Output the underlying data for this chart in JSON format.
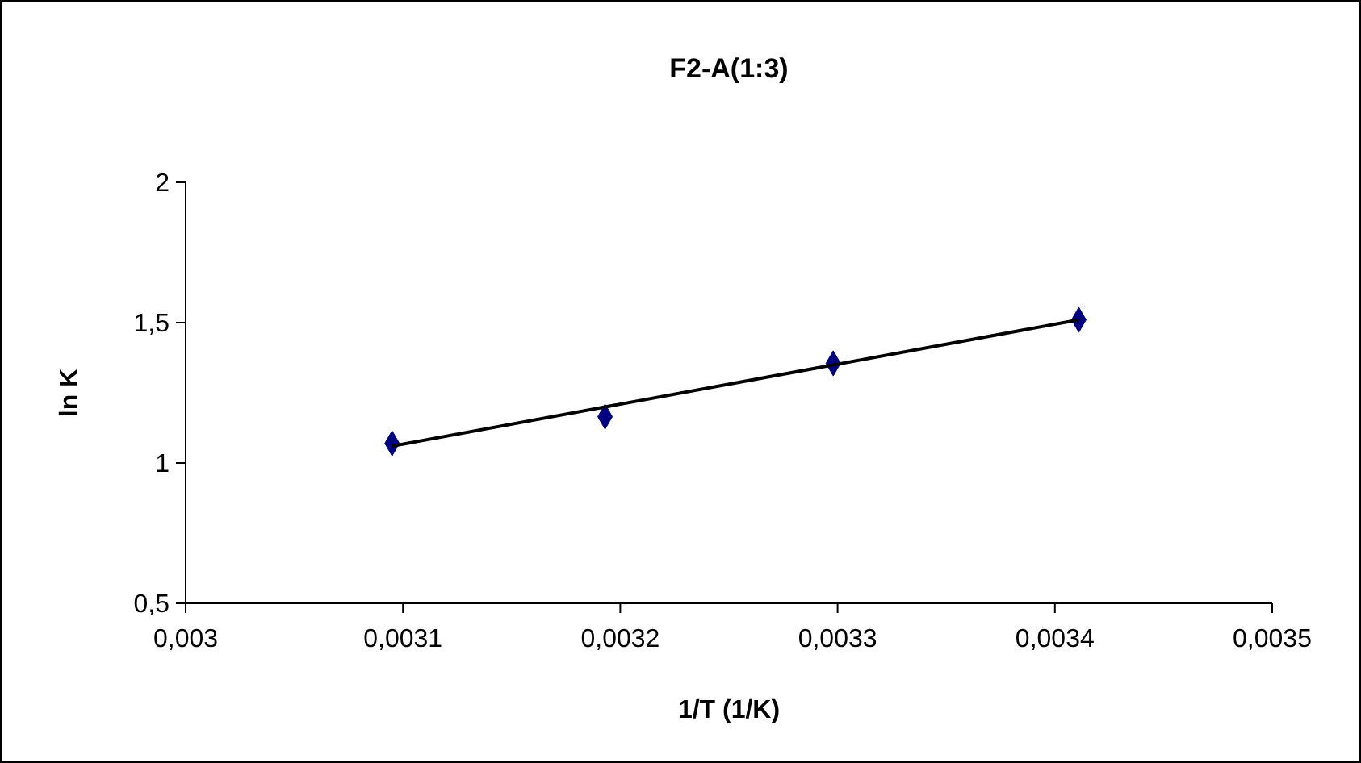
{
  "chart_data": {
    "type": "scatter",
    "title": "F2-A(1:3)",
    "xlabel": "1/T (1/K)",
    "ylabel": "ln K",
    "xlim": [
      0.003,
      0.0035
    ],
    "ylim": [
      0.5,
      2
    ],
    "xticks": [
      {
        "value": 0.003,
        "label": "0,003"
      },
      {
        "value": 0.0031,
        "label": "0,0031"
      },
      {
        "value": 0.0032,
        "label": "0,0032"
      },
      {
        "value": 0.0033,
        "label": "0,0033"
      },
      {
        "value": 0.0034,
        "label": "0,0034"
      },
      {
        "value": 0.0035,
        "label": "0,0035"
      }
    ],
    "yticks": [
      {
        "value": 0.5,
        "label": "0,5"
      },
      {
        "value": 1,
        "label": "1"
      },
      {
        "value": 1.5,
        "label": "1,5"
      },
      {
        "value": 2,
        "label": "2"
      }
    ],
    "grid": false,
    "series": [
      {
        "color": "#000080",
        "marker": "diamond",
        "x": [
          0.003095,
          0.003193,
          0.003298,
          0.003411
        ],
        "values": [
          1.07,
          1.165,
          1.355,
          1.51
        ]
      },
      {
        "type": "line",
        "color": "#000000",
        "marker": "none",
        "x": [
          0.003095,
          0.003411
        ],
        "values": [
          1.06,
          1.51
        ]
      }
    ]
  }
}
